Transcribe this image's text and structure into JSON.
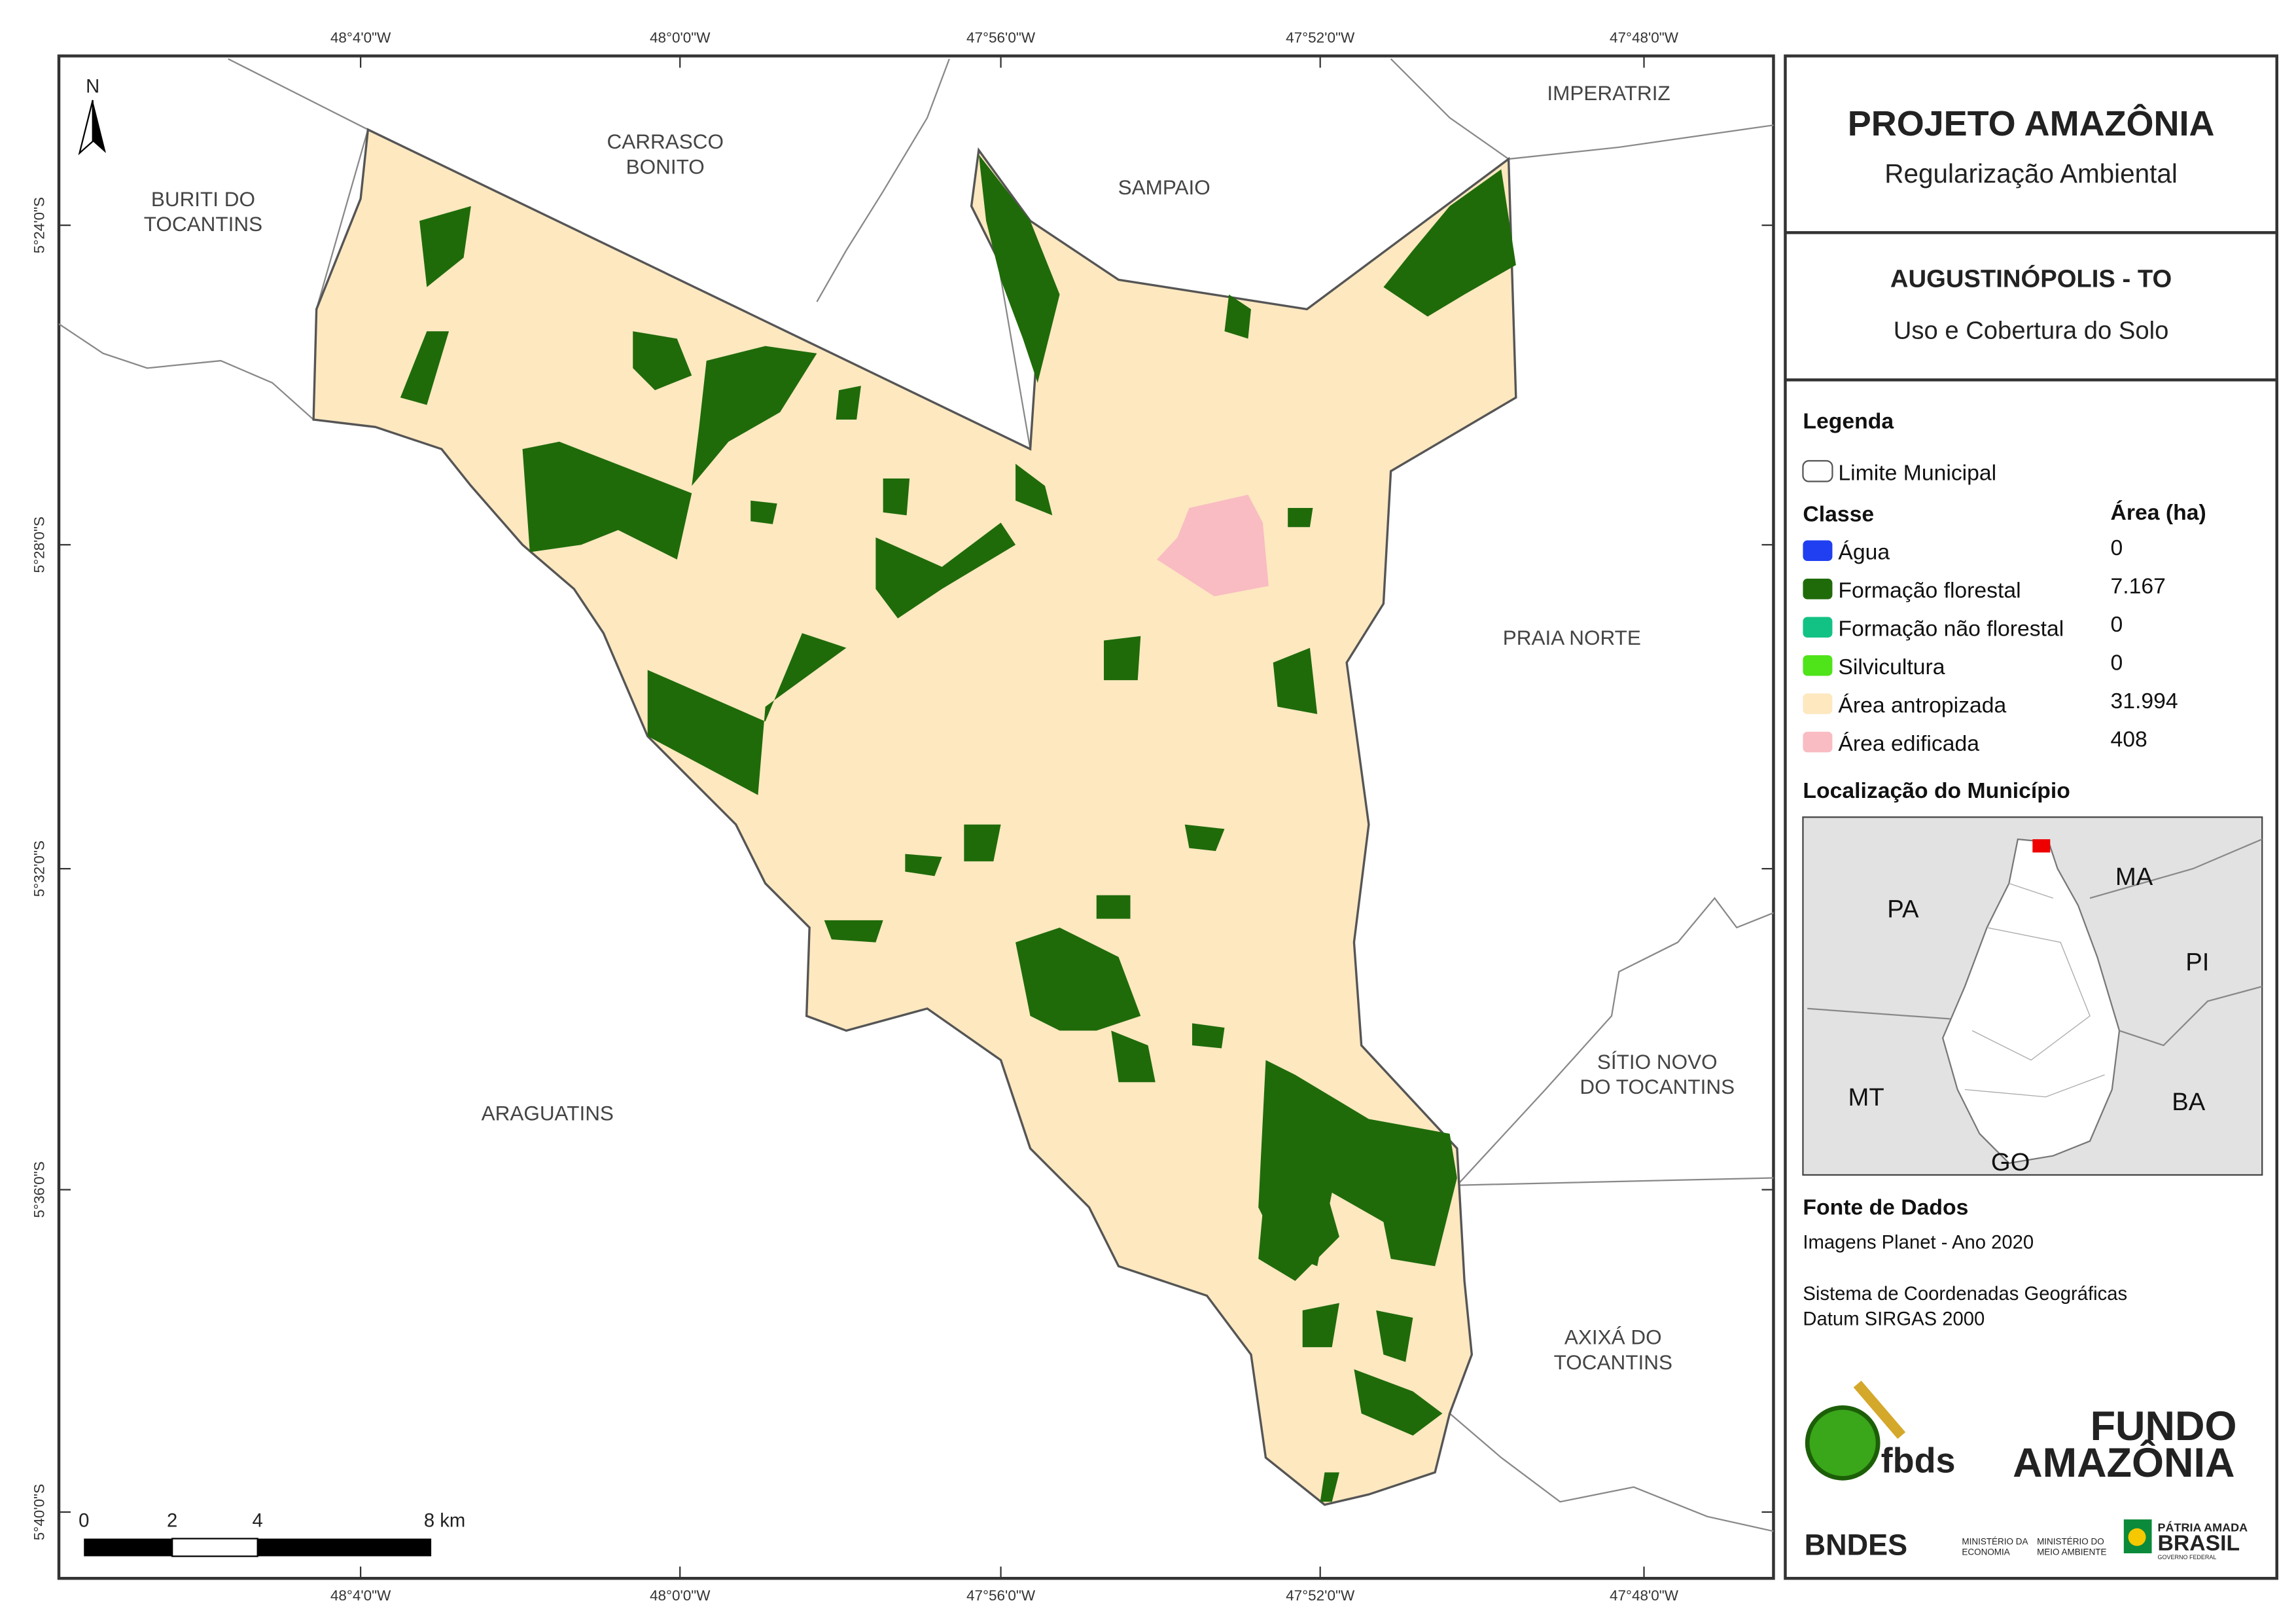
{
  "header": {
    "title": "PROJETO AMAZÔNIA",
    "subtitle": "Regularização Ambiental"
  },
  "map_title": {
    "municipality": "AUGUSTINÓPOLIS - TO",
    "theme": "Uso e Cobertura do Solo"
  },
  "legend": {
    "title": "Legenda",
    "boundary": "Limite Municipal",
    "class_header": "Classe",
    "area_header": "Área (ha)",
    "classes": [
      {
        "name": "Água",
        "area": "0",
        "color": "#1f3ff0"
      },
      {
        "name": "Formação florestal",
        "area": "7.167",
        "color": "#1f6b0a"
      },
      {
        "name": "Formação não florestal",
        "area": "0",
        "color": "#12c285"
      },
      {
        "name": "Silvicultura",
        "area": "0",
        "color": "#4fe31a"
      },
      {
        "name": "Área antropizada",
        "area": "31.994",
        "color": "#fde8c0"
      },
      {
        "name": "Área edificada",
        "area": "408",
        "color": "#f9bcc2"
      }
    ]
  },
  "location": {
    "title": "Localização do Município",
    "states": [
      "PA",
      "MA",
      "PI",
      "MT",
      "BA",
      "GO"
    ]
  },
  "sources": {
    "title": "Fonte de Dados",
    "lines": [
      "Imagens Planet - Ano 2020",
      "Sistema de Coordenadas Geográficas",
      "Datum SIRGAS 2000"
    ]
  },
  "map": {
    "north": "N",
    "places": [
      [
        "BURITI DO",
        "TOCANTINS"
      ],
      [
        "CARRASCO",
        "BONITO"
      ],
      [
        "SAMPAIO"
      ],
      [
        "IMPERATRIZ"
      ],
      [
        "PRAIA NORTE"
      ],
      [
        "SÍTIO NOVO",
        "DO TOCANTINS"
      ],
      [
        "ARAGUATINS"
      ],
      [
        "AXIXÁ DO",
        "TOCANTINS"
      ]
    ],
    "lon_labels": [
      "48°4'0\"W",
      "48°0'0\"W",
      "47°56'0\"W",
      "47°52'0\"W",
      "47°48'0\"W"
    ],
    "lat_labels": [
      "5°24'0\"S",
      "5°28'0\"S",
      "5°32'0\"S",
      "5°36'0\"S",
      "5°40'0\"S"
    ],
    "scale_labels": [
      "0",
      "2",
      "4",
      "8 km"
    ]
  },
  "logos": {
    "fbds": "fbds",
    "fundo": "FUNDO",
    "amazonia": "AMAZÔNIA",
    "bndes": "BNDES",
    "min_economia": [
      "MINISTÉRIO DA",
      "ECONOMIA"
    ],
    "min_ambiente": [
      "MINISTÉRIO DO",
      "MEIO AMBIENTE"
    ],
    "patria": "PÁTRIA AMADA",
    "brasil": "BRASIL",
    "governo": "GOVERNO FEDERAL"
  }
}
